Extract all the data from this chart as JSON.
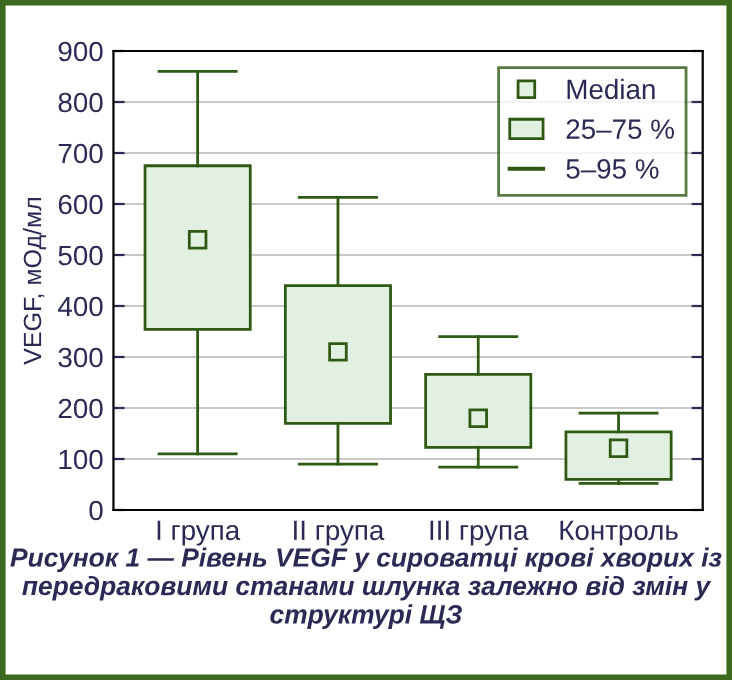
{
  "chart_data": {
    "type": "box",
    "categories": [
      "I група",
      "II група",
      "III група",
      "Контроль"
    ],
    "series": [
      {
        "name": "25–75 %",
        "color": "#e2f0e2",
        "boxes": [
          {
            "low": 110,
            "q1": 354,
            "median": 530,
            "q3": 675,
            "high": 860
          },
          {
            "low": 90,
            "q1": 170,
            "median": 310,
            "q3": 440,
            "high": 613
          },
          {
            "low": 84,
            "q1": 123,
            "median": 180,
            "q3": 266,
            "high": 340
          },
          {
            "low": 52,
            "q1": 60,
            "median": 121,
            "q3": 153,
            "high": 190
          }
        ]
      }
    ],
    "ylabel": "VEGF, мОд/мл",
    "ylim": [
      0,
      900
    ],
    "yticks": [
      0,
      100,
      200,
      300,
      400,
      500,
      600,
      700,
      800,
      900
    ],
    "grid": "y",
    "legend": "top right",
    "marker": "square",
    "annotations": [
      "Median",
      "5–95 %",
      "Рисунок 1 — Рівень VEGF у сироватці крові хворих із передраковими станами шлунка залежно від змін у структурі ЩЗ"
    ]
  }
}
